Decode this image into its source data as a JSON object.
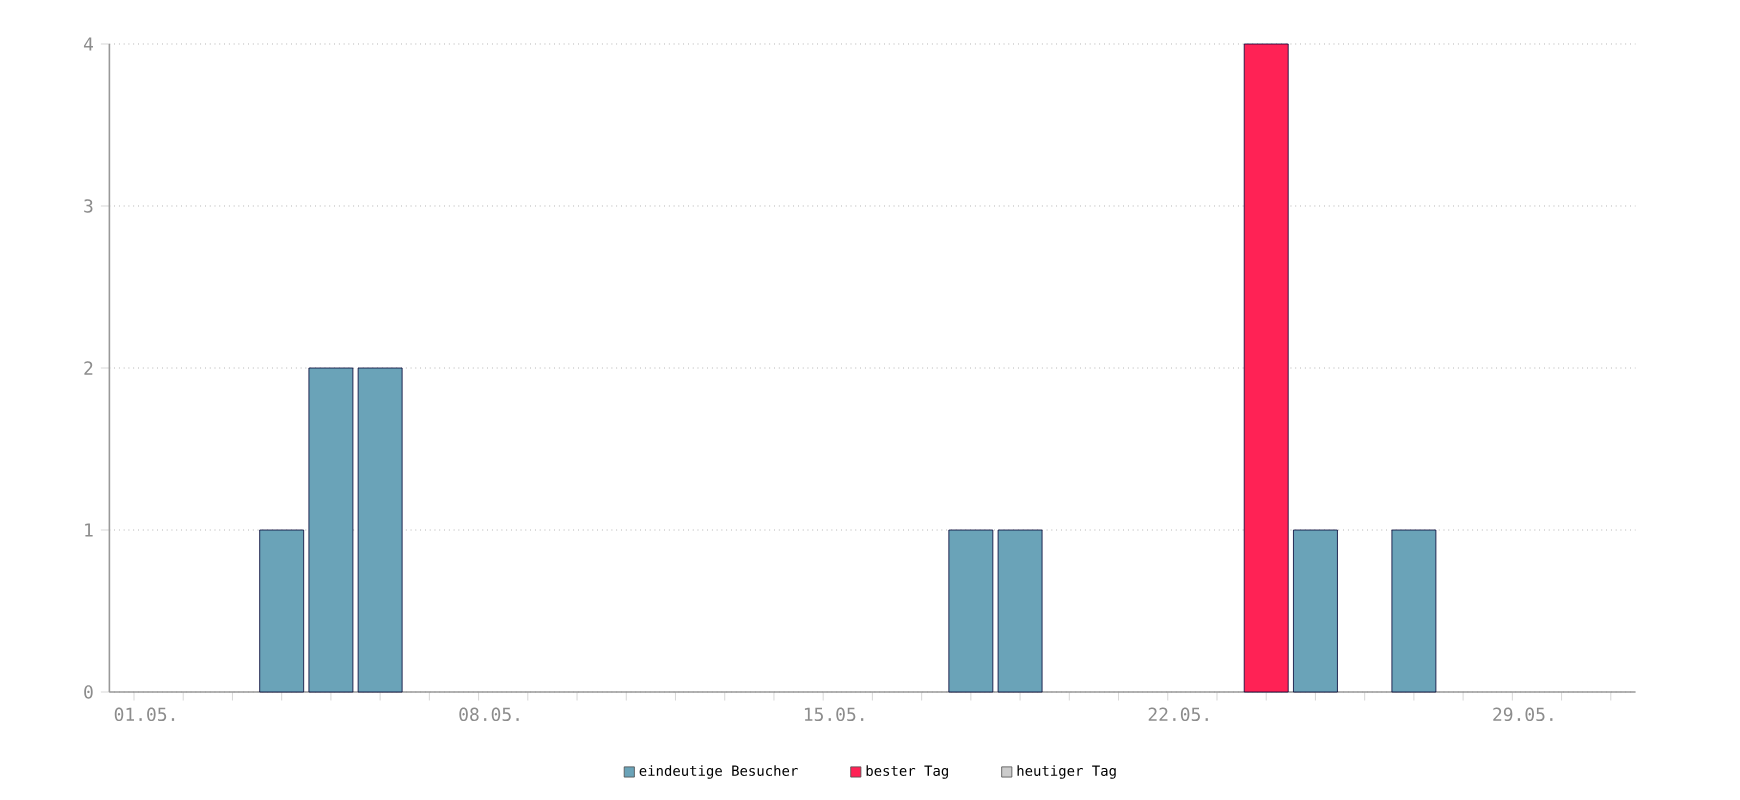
{
  "chart_data": {
    "type": "bar",
    "categories": [
      "01.05.",
      null,
      null,
      null,
      null,
      null,
      null,
      "08.05.",
      null,
      null,
      null,
      null,
      null,
      null,
      "15.05.",
      null,
      null,
      null,
      null,
      null,
      null,
      "22.05.",
      null,
      null,
      null,
      null,
      null,
      null,
      "29.05.",
      null,
      null
    ],
    "series": [
      {
        "name": "eindeutige Besucher",
        "color": "#6aa3b8",
        "values": [
          0,
          0,
          0,
          1,
          2,
          2,
          0,
          0,
          0,
          0,
          0,
          0,
          0,
          0,
          0,
          0,
          0,
          1,
          1,
          0,
          0,
          0,
          0,
          null,
          1,
          0,
          1,
          0,
          0,
          0,
          0
        ]
      },
      {
        "name": "bester Tag",
        "color": "#ff2255",
        "values": [
          null,
          null,
          null,
          null,
          null,
          null,
          null,
          null,
          null,
          null,
          null,
          null,
          null,
          null,
          null,
          null,
          null,
          null,
          null,
          null,
          null,
          null,
          null,
          4,
          null,
          null,
          null,
          null,
          null,
          null,
          null
        ]
      },
      {
        "name": "heutiger Tag",
        "color": "#cccccc",
        "values": [
          null,
          null,
          null,
          null,
          null,
          null,
          null,
          null,
          null,
          null,
          null,
          null,
          null,
          null,
          null,
          null,
          null,
          null,
          null,
          null,
          null,
          null,
          null,
          null,
          null,
          null,
          null,
          null,
          null,
          null,
          null
        ]
      }
    ],
    "ylim": [
      0,
      4
    ],
    "yticks": [
      0,
      1,
      2,
      3,
      4
    ],
    "grid": "y",
    "legend": "bottom"
  }
}
